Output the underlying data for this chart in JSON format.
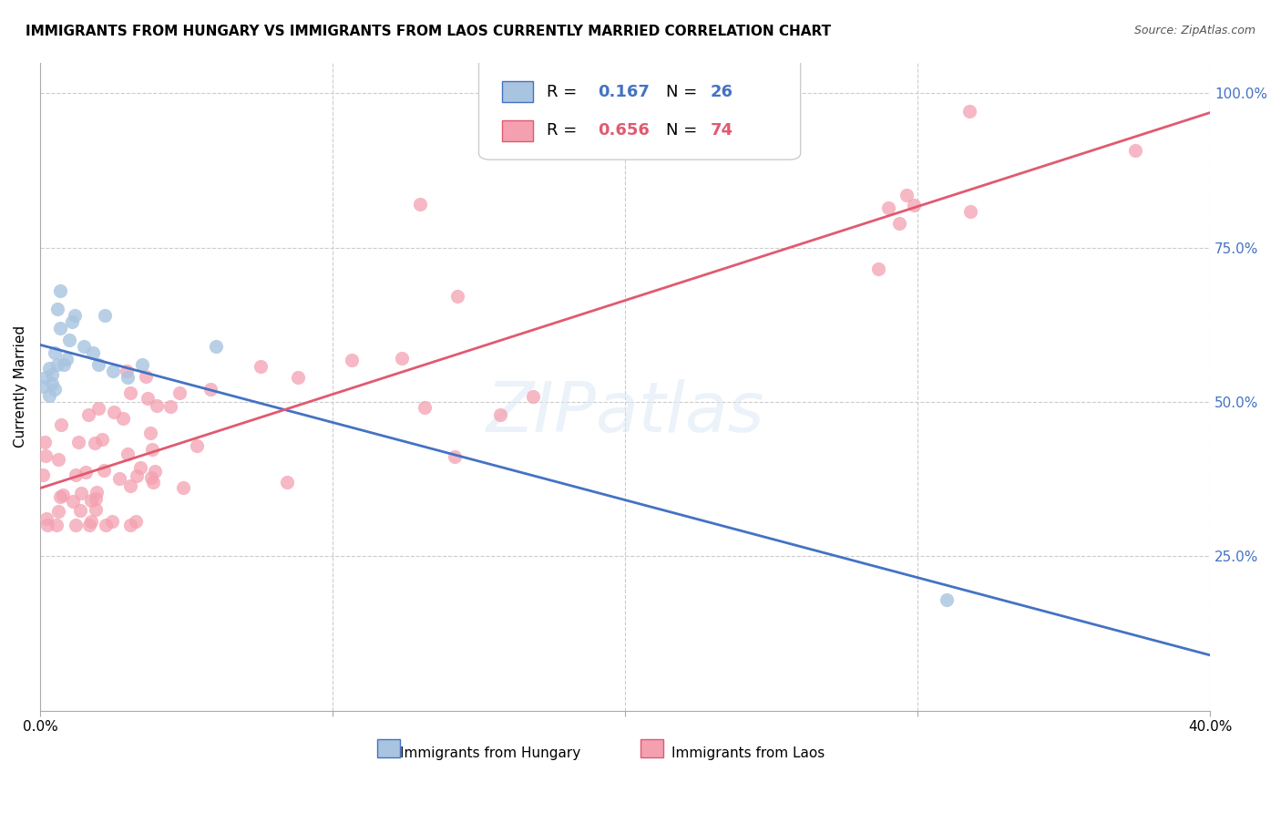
{
  "title": "IMMIGRANTS FROM HUNGARY VS IMMIGRANTS FROM LAOS CURRENTLY MARRIED CORRELATION CHART",
  "source": "Source: ZipAtlas.com",
  "ylabel": "Currently Married",
  "xlim": [
    0.0,
    0.4
  ],
  "ylim": [
    0.0,
    1.05
  ],
  "legend1_r": "0.167",
  "legend1_n": "26",
  "legend2_r": "0.656",
  "legend2_n": "74",
  "color_hungary": "#a8c4e0",
  "color_laos": "#f4a0b0",
  "color_line_hungary": "#4472c4",
  "color_line_laos": "#e05a70",
  "hungary_x": [
    0.001,
    0.002,
    0.003,
    0.003,
    0.004,
    0.004,
    0.005,
    0.005,
    0.006,
    0.006,
    0.007,
    0.007,
    0.008,
    0.009,
    0.01,
    0.011,
    0.012,
    0.015,
    0.018,
    0.02,
    0.022,
    0.025,
    0.03,
    0.035,
    0.06,
    0.31
  ],
  "hungary_y": [
    0.525,
    0.54,
    0.51,
    0.555,
    0.545,
    0.53,
    0.58,
    0.52,
    0.56,
    0.65,
    0.62,
    0.68,
    0.56,
    0.57,
    0.6,
    0.63,
    0.64,
    0.59,
    0.58,
    0.56,
    0.64,
    0.55,
    0.54,
    0.56,
    0.59,
    0.18
  ]
}
